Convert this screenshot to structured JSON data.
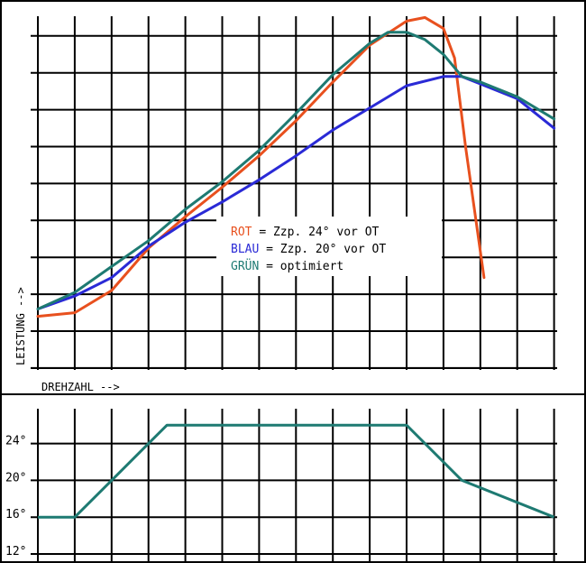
{
  "chart_data": [
    {
      "type": "line",
      "title": "",
      "xlabel": "DREHZAHL -->",
      "ylabel": "LEISTUNG -->",
      "grid": true,
      "legend": "center",
      "series": [
        {
          "name": "ROT",
          "legend_label": "ROT  = Zzp. 24° vor OT",
          "color": "#e8501e",
          "points": [
            [
              0,
              0.4
            ],
            [
              1,
              0.5
            ],
            [
              2,
              1.1
            ],
            [
              3,
              2.25
            ],
            [
              4,
              3.1
            ],
            [
              5,
              3.9
            ],
            [
              6,
              4.75
            ],
            [
              7,
              5.7
            ],
            [
              8,
              6.75
            ],
            [
              9,
              7.75
            ],
            [
              10,
              8.4
            ],
            [
              10.5,
              8.5
            ],
            [
              11,
              8.2
            ],
            [
              11.3,
              7.4
            ],
            [
              11.6,
              5.0
            ],
            [
              12.1,
              1.45
            ]
          ]
        },
        {
          "name": "BLAU",
          "legend_label": "BLAU = Zzp. 20° vor OT",
          "color": "#2a2ad6",
          "points": [
            [
              0,
              0.6
            ],
            [
              1,
              0.95
            ],
            [
              2,
              1.45
            ],
            [
              3,
              2.3
            ],
            [
              4,
              2.95
            ],
            [
              5,
              3.5
            ],
            [
              6,
              4.1
            ],
            [
              7,
              4.75
            ],
            [
              8,
              5.45
            ],
            [
              9,
              6.05
            ],
            [
              10,
              6.65
            ],
            [
              11,
              6.9
            ],
            [
              11.5,
              6.9
            ],
            [
              12,
              6.7
            ],
            [
              13,
              6.3
            ],
            [
              14,
              5.5
            ]
          ]
        },
        {
          "name": "GRÜN",
          "legend_label": "GRÜN = optimiert",
          "color": "#1e7a72",
          "points": [
            [
              0,
              0.6
            ],
            [
              1,
              1.05
            ],
            [
              2,
              1.75
            ],
            [
              3,
              2.45
            ],
            [
              4,
              3.3
            ],
            [
              5,
              4.05
            ],
            [
              6,
              4.9
            ],
            [
              7,
              5.9
            ],
            [
              8,
              6.95
            ],
            [
              9,
              7.8
            ],
            [
              9.5,
              8.1
            ],
            [
              10,
              8.1
            ],
            [
              10.5,
              7.9
            ],
            [
              11,
              7.5
            ],
            [
              11.5,
              6.9
            ],
            [
              12,
              6.75
            ],
            [
              13,
              6.35
            ],
            [
              14,
              5.75
            ]
          ]
        }
      ]
    },
    {
      "type": "line",
      "title": "",
      "xlabel": "",
      "ylabel": "",
      "grid": true,
      "ylim": [
        12,
        28
      ],
      "yticks": [
        "24°",
        "20°",
        "16°",
        "12°"
      ],
      "ytick_values": [
        24,
        20,
        16,
        12
      ],
      "series": [
        {
          "name": "",
          "color": "#1e7a72",
          "points": [
            [
              0,
              16
            ],
            [
              1,
              16
            ],
            [
              2,
              20
            ],
            [
              3,
              24
            ],
            [
              3.5,
              26
            ],
            [
              10,
              26
            ],
            [
              11.5,
              20
            ],
            [
              14,
              16
            ]
          ]
        }
      ]
    }
  ]
}
